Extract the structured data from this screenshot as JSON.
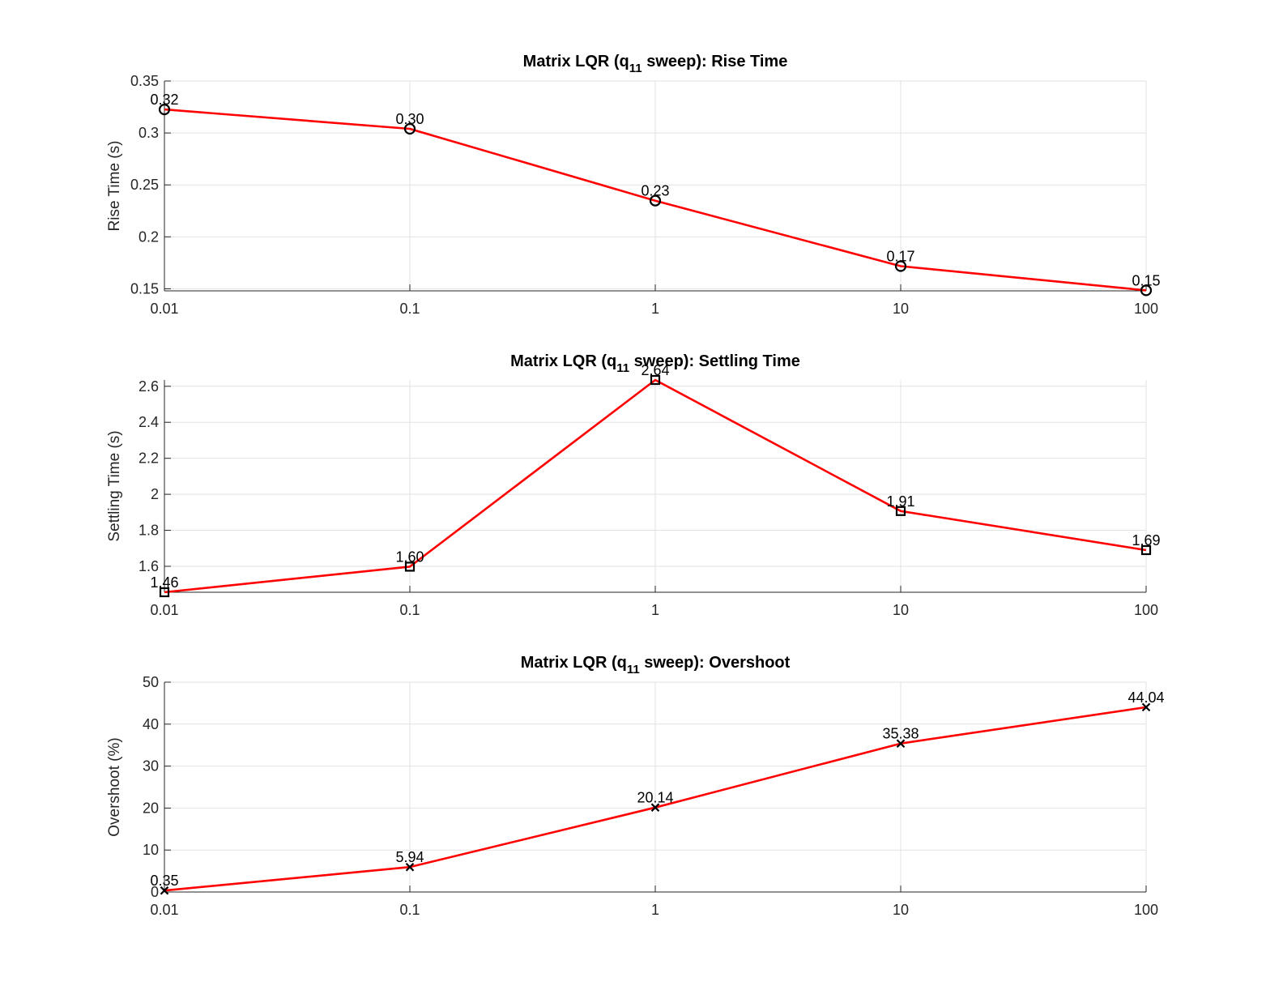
{
  "figure": {
    "line_color": "#ff0000",
    "marker_color": "#000000",
    "text_color": "#000000"
  },
  "chart_data": [
    {
      "type": "line",
      "title": "Matrix LQR (q11 sweep): Rise Time",
      "title_parts": {
        "pre": "Matrix LQR (q",
        "sub": "11",
        "post": " sweep): Rise Time"
      },
      "xlabel": "",
      "ylabel": "Rise Time (s)",
      "x_scale": "log",
      "x": [
        0.01,
        0.1,
        1,
        10,
        100
      ],
      "x_tick_labels": [
        "0.01",
        "0.1",
        "1",
        "10",
        "100"
      ],
      "y": [
        0.3226,
        0.304,
        0.2348,
        0.1718,
        0.1485
      ],
      "data_labels": [
        "0.32",
        "0.30",
        "0.23",
        "0.17",
        "0.15"
      ],
      "ylim": [
        0.148,
        0.35
      ],
      "y_ticks": [
        0.15,
        0.2,
        0.25,
        0.3,
        0.35
      ],
      "y_tick_labels": [
        "0.15",
        "0.2",
        "0.25",
        "0.3",
        "0.35"
      ],
      "marker": "circle",
      "grid": true
    },
    {
      "type": "line",
      "title": "Matrix LQR (q11 sweep): Settling Time",
      "title_parts": {
        "pre": "Matrix LQR (q",
        "sub": "11",
        "post": " sweep): Settling Time"
      },
      "xlabel": "",
      "ylabel": "Settling Time (s)",
      "x_scale": "log",
      "x": [
        0.01,
        0.1,
        1,
        10,
        100
      ],
      "x_tick_labels": [
        "0.01",
        "0.1",
        "1",
        "10",
        "100"
      ],
      "y": [
        1.456,
        1.598,
        2.635,
        1.907,
        1.69
      ],
      "data_labels": [
        "1.46",
        "1.60",
        "2.64",
        "1.91",
        "1.69"
      ],
      "ylim": [
        1.456,
        2.635
      ],
      "y_ticks": [
        1.6,
        1.8,
        2,
        2.2,
        2.4,
        2.6
      ],
      "y_tick_labels": [
        "1.6",
        "1.8",
        "2",
        "2.2",
        "2.4",
        "2.6"
      ],
      "marker": "square",
      "grid": true
    },
    {
      "type": "line",
      "title": "Matrix LQR (q11 sweep): Overshoot",
      "title_parts": {
        "pre": "Matrix LQR (q",
        "sub": "11",
        "post": " sweep): Overshoot"
      },
      "xlabel": "",
      "ylabel": "Overshoot (%)",
      "x_scale": "log",
      "x": [
        0.01,
        0.1,
        1,
        10,
        100
      ],
      "x_tick_labels": [
        "0.01",
        "0.1",
        "1",
        "10",
        "100"
      ],
      "y": [
        0.35,
        5.94,
        20.14,
        35.38,
        44.04
      ],
      "data_labels": [
        "0.35",
        "5.94",
        "20.14",
        "35.38",
        "44.04"
      ],
      "ylim": [
        0,
        50
      ],
      "y_ticks": [
        0,
        10,
        20,
        30,
        40,
        50
      ],
      "y_tick_labels": [
        "0",
        "10",
        "20",
        "30",
        "40",
        "50"
      ],
      "marker": "x",
      "grid": true
    }
  ]
}
